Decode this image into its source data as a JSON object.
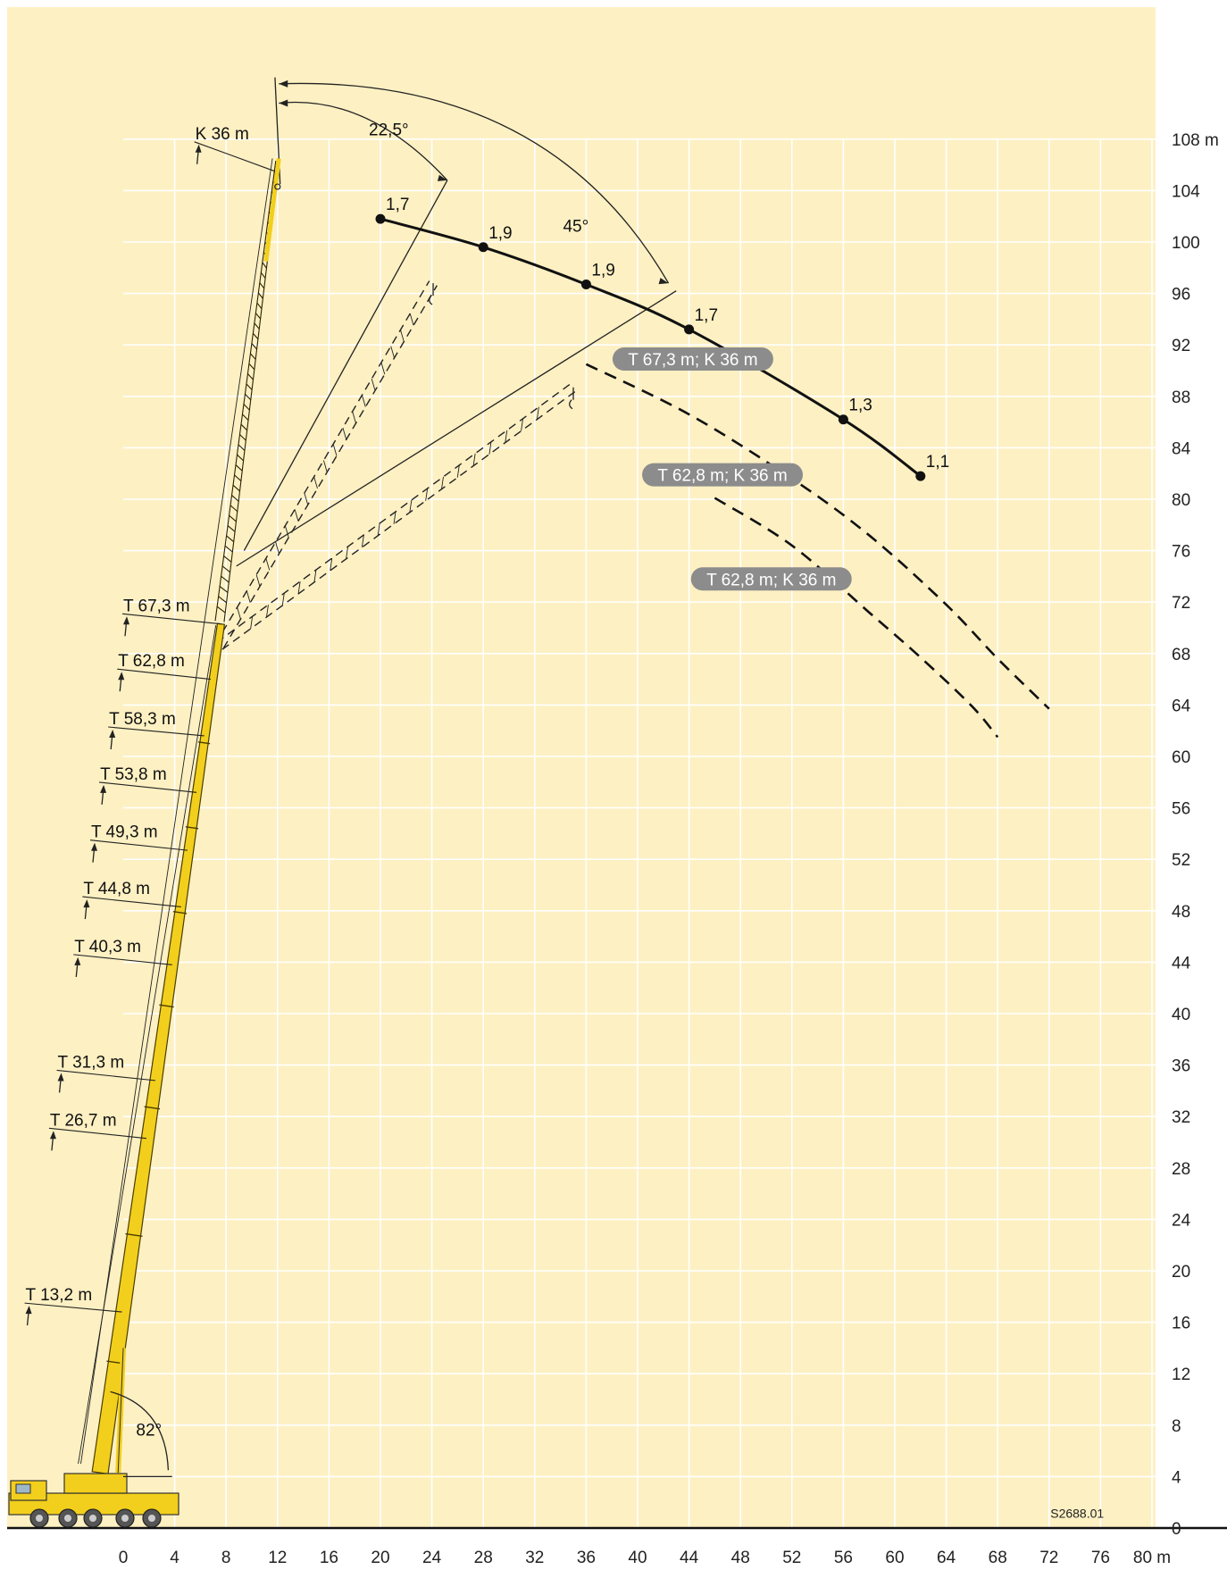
{
  "chart_data": {
    "type": "line",
    "title": "",
    "xlabel": "",
    "ylabel": "",
    "x_unit": "m",
    "y_unit": "m",
    "xlim": [
      0,
      80
    ],
    "ylim": [
      0,
      108
    ],
    "x_ticks": [
      0,
      4,
      8,
      12,
      16,
      20,
      24,
      28,
      32,
      36,
      40,
      44,
      48,
      52,
      56,
      60,
      64,
      68,
      72,
      76,
      80
    ],
    "y_ticks": [
      0,
      4,
      8,
      12,
      16,
      20,
      24,
      28,
      32,
      36,
      40,
      44,
      48,
      52,
      56,
      60,
      64,
      68,
      72,
      76,
      80,
      84,
      88,
      92,
      96,
      100,
      104,
      108
    ],
    "x_tick_labels": [
      "0",
      "4",
      "8",
      "12",
      "16",
      "20",
      "24",
      "28",
      "32",
      "36",
      "40",
      "44",
      "48",
      "52",
      "56",
      "60",
      "64",
      "68",
      "72",
      "76",
      "80 m"
    ],
    "y_tick_labels": [
      "0",
      "4",
      "8",
      "12",
      "16",
      "20",
      "24",
      "28",
      "32",
      "36",
      "40",
      "44",
      "48",
      "52",
      "56",
      "60",
      "64",
      "68",
      "72",
      "76",
      "80",
      "84",
      "88",
      "92",
      "96",
      "100",
      "104",
      "108 m"
    ],
    "grid": true,
    "series": [
      {
        "name": "T 67,3 m; K 36 m",
        "style": "solid",
        "color": "#111111",
        "x": [
          20,
          28,
          36,
          44,
          56,
          62
        ],
        "y": [
          101.8,
          99.6,
          96.7,
          93.2,
          86.2,
          81.8
        ],
        "point_labels": [
          "1,7",
          "1,9",
          "1,9",
          "1,7",
          "1,3",
          "1,1"
        ]
      },
      {
        "name": "T 62,8 m; K 36 m",
        "style": "dashed",
        "color": "#111111",
        "x": [
          36,
          44,
          52,
          58,
          64,
          68,
          72
        ],
        "y": [
          90.5,
          86.6,
          81.6,
          77.2,
          71.8,
          67.6,
          63.7
        ]
      },
      {
        "name": "T 62,8 m; K 36 m",
        "style": "dashed",
        "color": "#111111",
        "x": [
          46,
          52,
          58,
          62,
          66,
          68
        ],
        "y": [
          80.1,
          76.4,
          71.2,
          67.7,
          63.9,
          61.5
        ]
      }
    ],
    "boom_section_labels": [
      "K 36 m",
      "T 67,3 m",
      "T 62,8 m",
      "T 58,3 m",
      "T 53,8 m",
      "T 49,3 m",
      "T 44,8 m",
      "T 40,3 m",
      "T 31,3 m",
      "T 26,7 m",
      "T 13,2 m"
    ],
    "angle_labels": [
      "22,5°",
      "45°",
      "82°"
    ],
    "reference_code": "S2688.01"
  },
  "colors": {
    "background": "#fdf0c3",
    "grid": "#ffffff",
    "boom": "#f2cf1c",
    "boom_outline": "#4a3d00",
    "pill": "#8c8c8c",
    "curve": "#111111"
  }
}
